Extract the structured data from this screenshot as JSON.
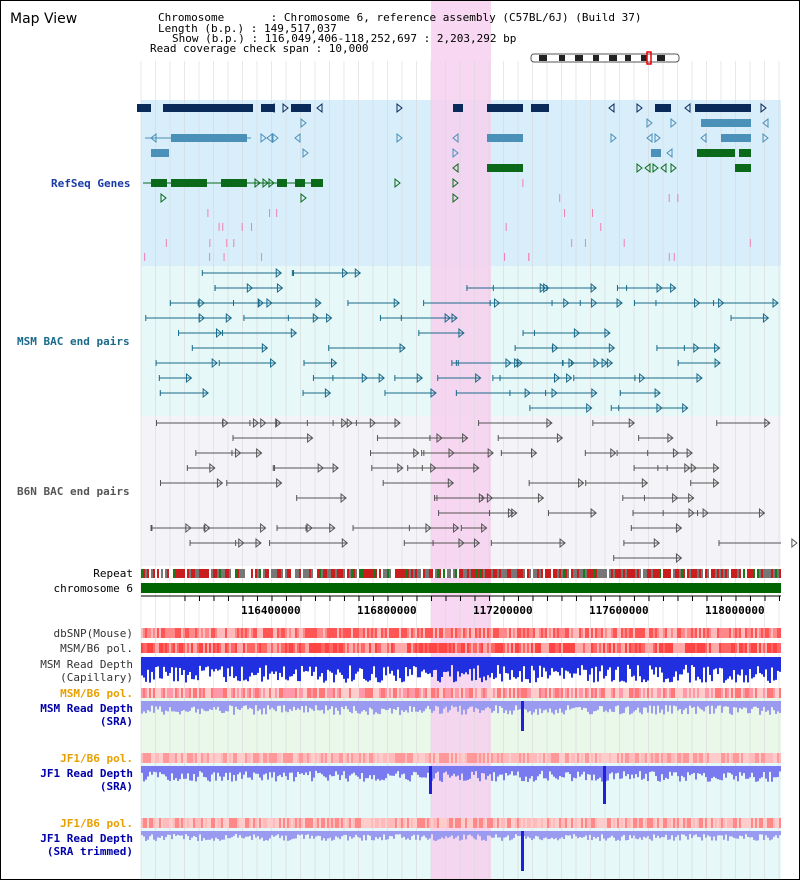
{
  "app": {
    "title": "Map View"
  },
  "info": {
    "chromosome": "Chromosome       : Chromosome 6, reference assembly (C57BL/6J) (Build 37)",
    "length": "Length (b.p.) : 149,517,037",
    "show": "Show (b.p.) : 116,049,406-118,252,697 : 2,203,292 bp",
    "coverage": "Read coverage check span : 10,000"
  },
  "tracks": {
    "refseq": "RefSeq Genes",
    "msm_bac": "MSM BAC end pairs",
    "b6n_bac": "B6N BAC end pairs",
    "repeat": "Repeat",
    "chromosome": "chromosome 6",
    "dbsnp": "dbSNP(Mouse)",
    "msm_b6_pol_1": "MSM/B6 pol.",
    "msm_read_depth_cap_1": "MSM Read Depth",
    "msm_read_depth_cap_2": "(Capillary)",
    "msm_b6_pol_2": "MSM/B6 pol.",
    "msm_read_depth_sra_1": "MSM Read Depth",
    "msm_read_depth_sra_2": "(SRA)",
    "jf1_b6_pol_1": "JF1/B6 pol.",
    "jf1_read_depth_sra_1": "JF1 Read Depth",
    "jf1_read_depth_sra_2": "(SRA)",
    "jf1_b6_pol_2": "JF1/B6 pol.",
    "jf1_read_depth_trim_1": "JF1 Read Depth",
    "jf1_read_depth_trim_2": "(SRA trimmed)"
  },
  "ruler": {
    "ticks": [
      "116400000",
      "116800000",
      "117200000",
      "117600000",
      "118000000"
    ]
  },
  "colors": {
    "refseq_bg": "#d8eefa",
    "bac_bg": "#e6f8f8",
    "b6n_bg": "#f4f4f8",
    "highlight": "#f6d0ee",
    "dark_gene": "#0a2a5a",
    "mid_gene": "#4a90b8",
    "green_gene": "#0a6a1a",
    "chromosome_bar": "#006400",
    "orange_label": "#e8a000",
    "blue_label": "#0000aa"
  }
}
